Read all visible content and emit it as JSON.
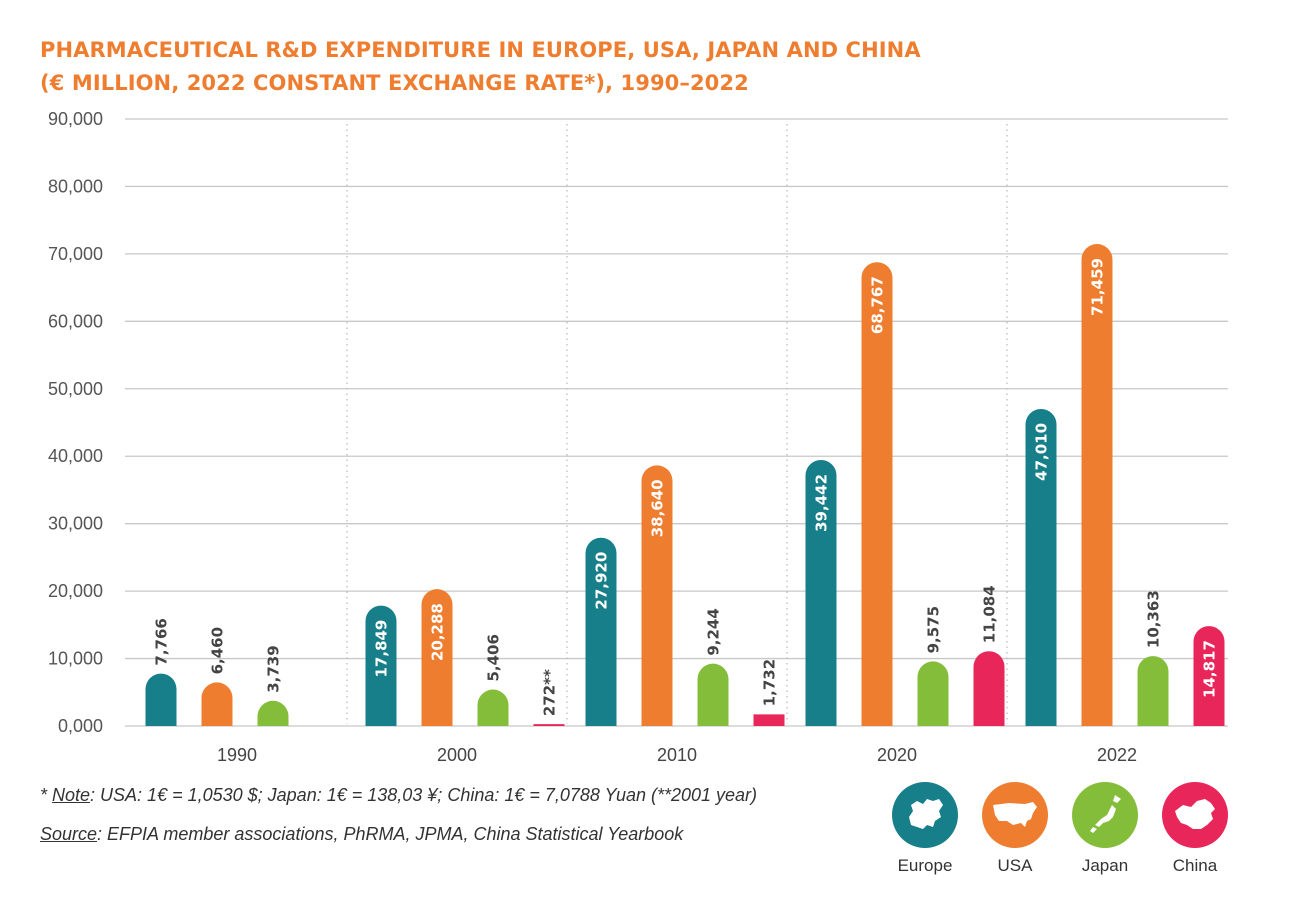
{
  "header": {
    "title_line1": "PHARMACEUTICAL R&D EXPENDITURE IN EUROPE, USA, JAPAN AND CHINA",
    "title_line2": "(€ MILLION, 2022 CONSTANT EXCHANGE RATE*), 1990–2022"
  },
  "chart_data": {
    "type": "bar",
    "categories": [
      "1990",
      "2000",
      "2010",
      "2020",
      "2022"
    ],
    "series": [
      {
        "name": "Europe",
        "color": "#177f8a",
        "values": [
          7766,
          17849,
          27920,
          39442,
          47010
        ],
        "labels": [
          "7,766",
          "17,849",
          "27,920",
          "39,442",
          "47,010"
        ]
      },
      {
        "name": "USA",
        "color": "#ef7d2f",
        "values": [
          6460,
          20288,
          38640,
          68767,
          71459
        ],
        "labels": [
          "6,460",
          "20,288",
          "38,640",
          "68,767",
          "71,459"
        ]
      },
      {
        "name": "Japan",
        "color": "#84bd3a",
        "values": [
          3739,
          5406,
          9244,
          9575,
          10363
        ],
        "labels": [
          "3,739",
          "5,406",
          "9,244",
          "9,575",
          "10,363"
        ]
      },
      {
        "name": "China",
        "color": "#e8265a",
        "values": [
          null,
          272,
          1732,
          11084,
          14817
        ],
        "labels": [
          null,
          "272**",
          "1,732",
          "11,084",
          "14,817"
        ]
      }
    ],
    "ylim": [
      0,
      90000
    ],
    "yticks": [
      0,
      10000,
      20000,
      30000,
      40000,
      50000,
      60000,
      70000,
      80000,
      90000
    ],
    "ytick_labels": [
      "0,000",
      "10,000",
      "20,000",
      "30,000",
      "40,000",
      "50,000",
      "60,000",
      "70,000",
      "80,000",
      "90,000"
    ],
    "grid": true,
    "legend_position": "bottom-right"
  },
  "footnotes": {
    "note_prefix": "* ",
    "note_label": "Note",
    "note_text": ":  USA: 1€ = 1,0530 $; Japan: 1€ = 138,03 ¥; China: 1€ = 7,0788 Yuan (**2001 year)",
    "source_label": "Source",
    "source_text": ": EFPIA member associations, PhRMA, JPMA, China Statistical Yearbook"
  },
  "legend": {
    "items": [
      {
        "label": "Europe",
        "color": "#177f8a",
        "icon": "europe-map-icon"
      },
      {
        "label": "USA",
        "color": "#ef7d2f",
        "icon": "usa-map-icon"
      },
      {
        "label": "Japan",
        "color": "#84bd3a",
        "icon": "japan-map-icon"
      },
      {
        "label": "China",
        "color": "#e8265a",
        "icon": "china-map-icon"
      }
    ]
  }
}
